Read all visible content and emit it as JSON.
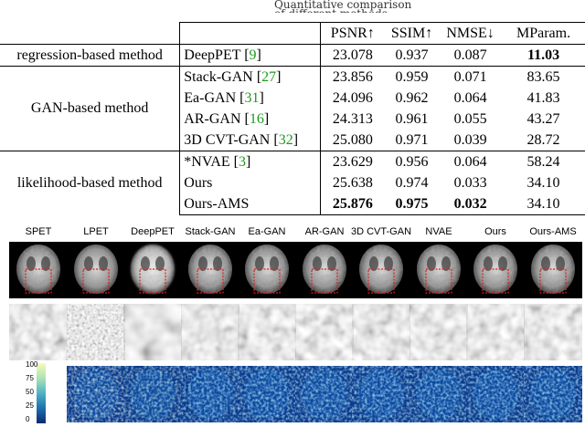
{
  "top_cut_text": "Quantitative comparison of different methods",
  "table": {
    "headers": [
      "",
      "",
      "PSNR↑",
      "SSIM↑",
      "NMSE↓",
      "MParam."
    ],
    "groups": [
      {
        "category": "regression-based method",
        "rows": [
          {
            "method": "DeepPET",
            "cite": "9",
            "psnr": "23.078",
            "ssim": "0.937",
            "nmse": "0.087",
            "mparam": "11.03",
            "bold": [
              "mparam"
            ]
          }
        ]
      },
      {
        "category": "GAN-based method",
        "rows": [
          {
            "method": "Stack-GAN",
            "cite": "27",
            "psnr": "23.856",
            "ssim": "0.959",
            "nmse": "0.071",
            "mparam": "83.65",
            "bold": []
          },
          {
            "method": "Ea-GAN",
            "cite": "31",
            "psnr": "24.096",
            "ssim": "0.962",
            "nmse": "0.064",
            "mparam": "41.83",
            "bold": []
          },
          {
            "method": "AR-GAN",
            "cite": "16",
            "psnr": "24.313",
            "ssim": "0.961",
            "nmse": "0.055",
            "mparam": "43.27",
            "bold": []
          },
          {
            "method": "3D CVT-GAN",
            "cite": "32",
            "psnr": "25.080",
            "ssim": "0.971",
            "nmse": "0.039",
            "mparam": "28.72",
            "bold": []
          }
        ]
      },
      {
        "category": "likelihood-based method",
        "rows": [
          {
            "method": "*NVAE",
            "cite": "3",
            "psnr": "23.629",
            "ssim": "0.956",
            "nmse": "0.064",
            "mparam": "58.24",
            "bold": []
          },
          {
            "method": "Ours",
            "cite": "",
            "psnr": "25.638",
            "ssim": "0.974",
            "nmse": "0.033",
            "mparam": "34.10",
            "bold": []
          },
          {
            "method": "Ours-AMS",
            "cite": "",
            "psnr": "25.876",
            "ssim": "0.975",
            "nmse": "0.032",
            "mparam": "34.10",
            "bold": [
              "psnr",
              "ssim",
              "nmse"
            ]
          }
        ]
      }
    ]
  },
  "figure": {
    "column_labels": [
      "SPET",
      "LPET",
      "DeepPET",
      "Stack-GAN",
      "Ea-GAN",
      "AR-GAN",
      "3D CVT-GAN",
      "NVAE",
      "Ours",
      "Ours-AMS"
    ],
    "colorbar_ticks": [
      "100",
      "75",
      "50",
      "25",
      "0"
    ],
    "colorbar_range": [
      0,
      100
    ],
    "colors": {
      "roi_box": "#e02020",
      "error_low": "#0a3a8c",
      "error_high": "#7fe0ff"
    }
  }
}
